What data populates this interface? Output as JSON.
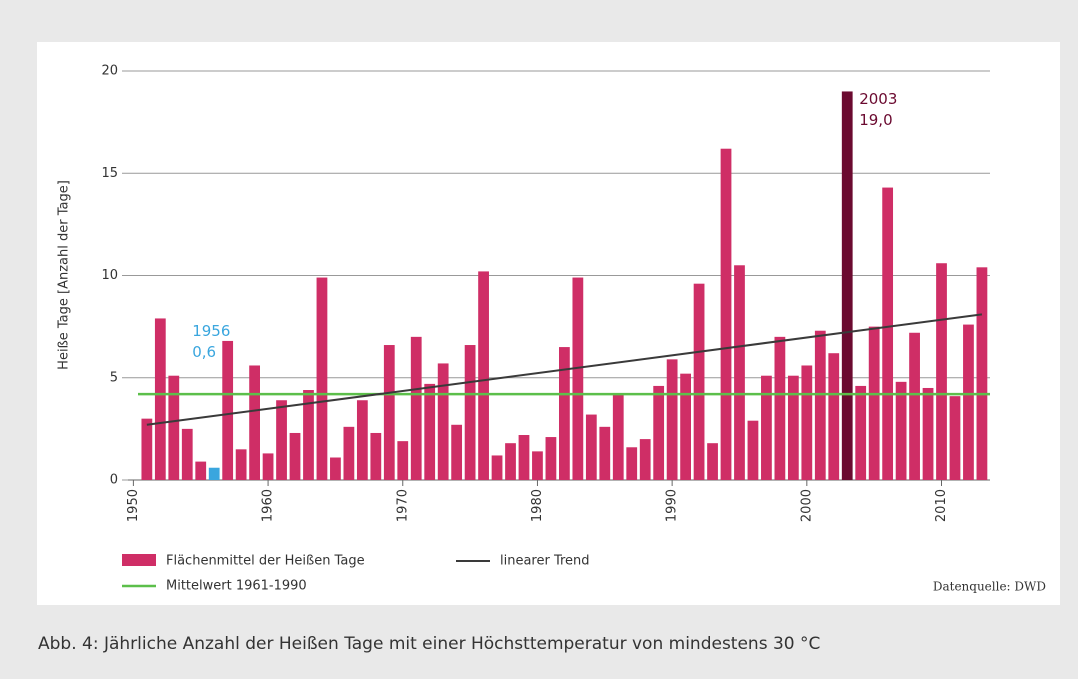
{
  "chart_data": {
    "type": "bar",
    "y_label": "Heiße Tage [Anzahl der Tage]",
    "caption": "Abb. 4: Jährliche Anzahl der Heißen Tage mit einer Höchsttemperatur von mindestens 30 °C",
    "source": "Datenquelle: DWD",
    "x": [
      1951,
      1952,
      1953,
      1954,
      1955,
      1956,
      1957,
      1958,
      1959,
      1960,
      1961,
      1962,
      1963,
      1964,
      1965,
      1966,
      1967,
      1968,
      1969,
      1970,
      1971,
      1972,
      1973,
      1974,
      1975,
      1976,
      1977,
      1978,
      1979,
      1980,
      1981,
      1982,
      1983,
      1984,
      1985,
      1986,
      1987,
      1988,
      1989,
      1990,
      1991,
      1992,
      1993,
      1994,
      1995,
      1996,
      1997,
      1998,
      1999,
      2000,
      2001,
      2002,
      2003,
      2004,
      2005,
      2006,
      2007,
      2008,
      2009,
      2010,
      2011,
      2012,
      2013
    ],
    "series": [
      {
        "name": "Flächenmittel der Heißen Tage",
        "color": "#cf2e66",
        "values": [
          3.0,
          7.9,
          5.1,
          2.5,
          0.9,
          0.6,
          6.8,
          1.5,
          5.6,
          1.3,
          3.9,
          2.3,
          4.4,
          9.9,
          1.1,
          2.6,
          3.9,
          2.3,
          6.6,
          1.9,
          7.0,
          4.7,
          5.7,
          2.7,
          6.6,
          10.2,
          1.2,
          1.8,
          2.2,
          1.4,
          2.1,
          6.5,
          9.9,
          3.2,
          2.6,
          4.2,
          1.6,
          2.0,
          4.6,
          5.9,
          5.2,
          9.6,
          1.8,
          16.2,
          10.5,
          2.9,
          5.1,
          7.0,
          5.1,
          5.6,
          7.3,
          6.2,
          19.0,
          4.6,
          7.5,
          14.3,
          4.8,
          7.2,
          4.5,
          10.6,
          4.1,
          7.6,
          10.4
        ]
      }
    ],
    "highlights": [
      {
        "x": 1956,
        "value": 0.6,
        "value_label": "0,6",
        "color": "#3aa6de"
      },
      {
        "x": 2003,
        "value": 19.0,
        "value_label": "19,0",
        "color": "#6b0a30"
      }
    ],
    "trend": {
      "name": "linearer Trend",
      "color": "#3a3a3a",
      "x": [
        1951,
        2013
      ],
      "values": [
        2.7,
        8.1
      ]
    },
    "mean": {
      "name": "Mittelwert 1961-1990",
      "color": "#5cbf4a",
      "value": 4.2
    },
    "xlim": [
      1949.6,
      2013.6
    ],
    "xticks": [
      1950,
      1960,
      1970,
      1980,
      1990,
      2000,
      2010
    ],
    "ylim": [
      0,
      20
    ],
    "yticks": [
      0,
      5,
      10,
      15,
      20
    ],
    "grid": true
  }
}
